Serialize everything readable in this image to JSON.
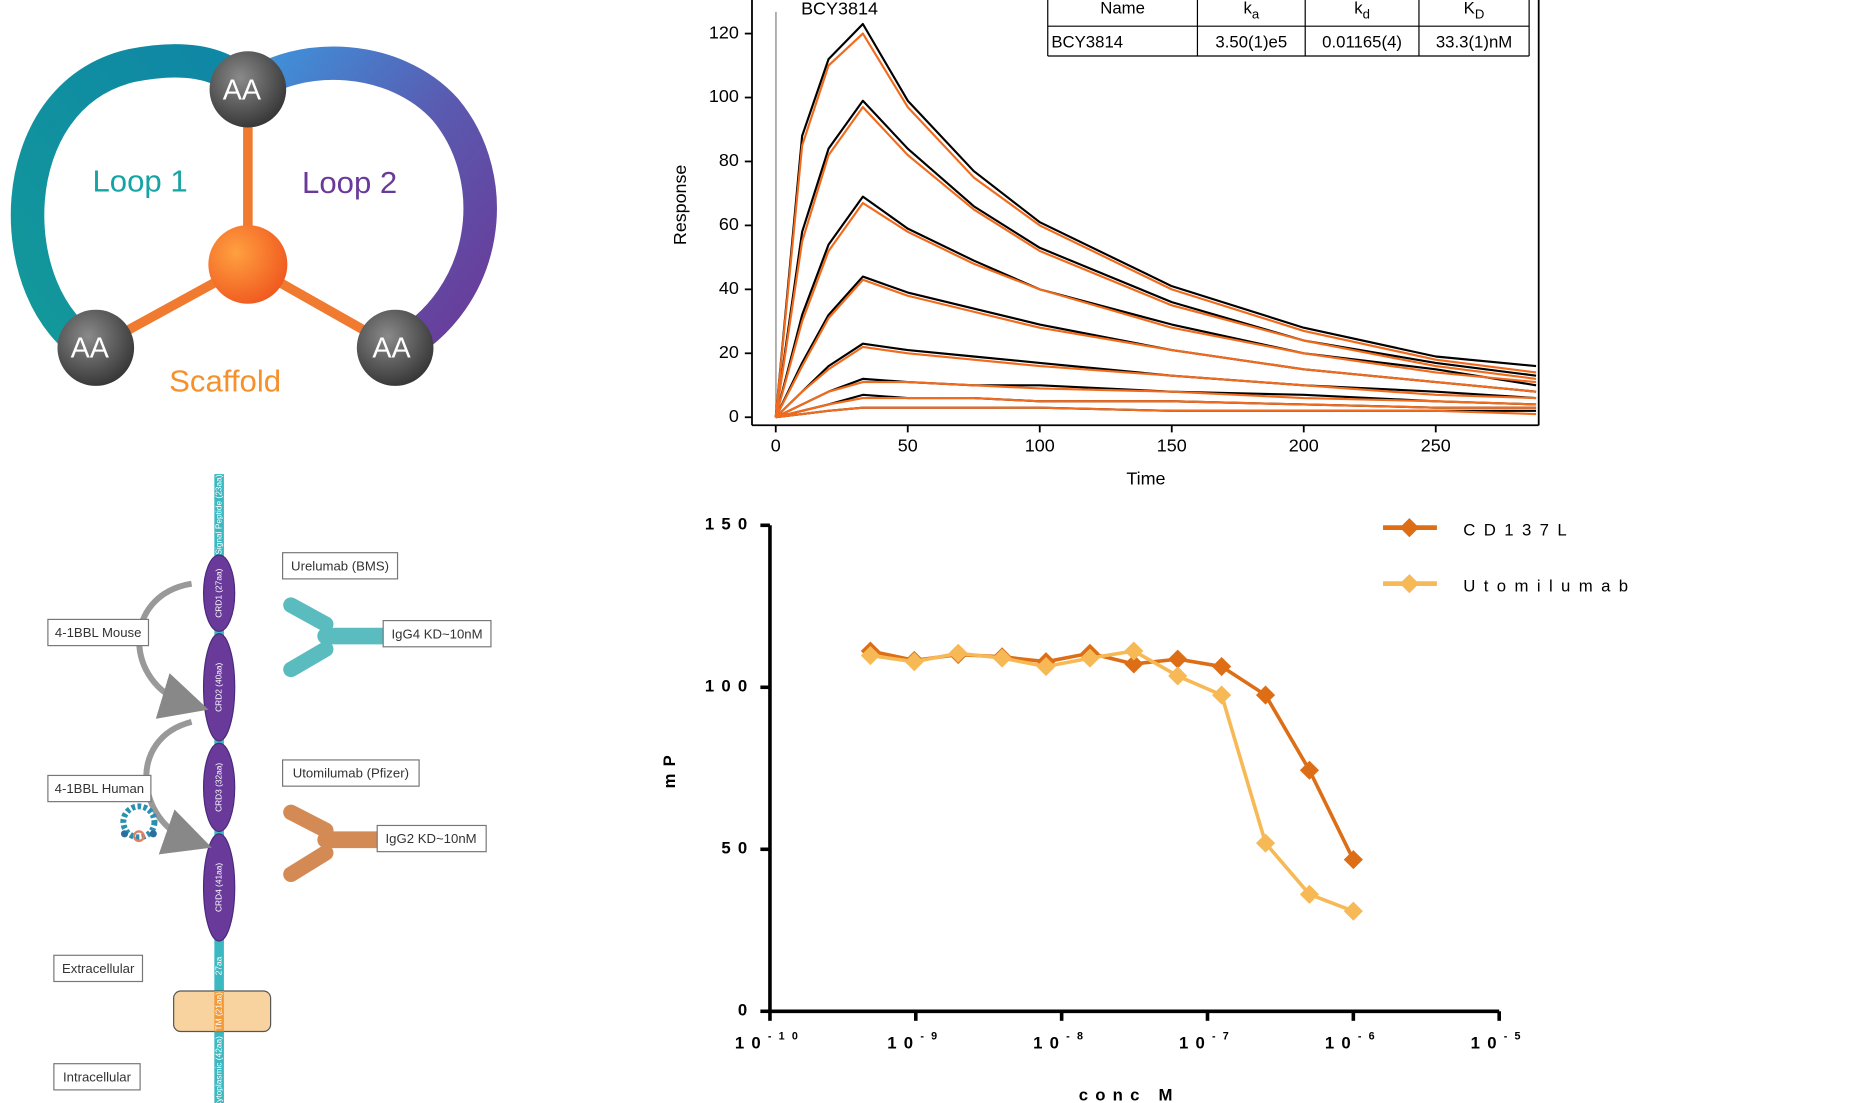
{
  "scaffold_diagram": {
    "nodes": [
      "AA",
      "AA",
      "AA"
    ],
    "loop1": "Loop 1",
    "loop2": "Loop 2",
    "scaffold": "Scaffold"
  },
  "receptor_diagram": {
    "stem": [
      "Signal Peptide (23aa)",
      "27aa",
      "TM (21aa)",
      "Cytoplasmic (42aa)"
    ],
    "domains": [
      "CRD1 (27aa)",
      "CRD2 (40aa)",
      "CRD3 (32aa)",
      "CRD4 (41aa)"
    ],
    "boxes": [
      "4-1BBL Mouse",
      "4-1BBL Human",
      "Urelumab (BMS)",
      "IgG4 KD~10nM",
      "Utomilumab (Pfizer)",
      "IgG2 KD~10nM",
      "Extracellular",
      "Intracellular"
    ]
  },
  "chart_data": [
    {
      "type": "line",
      "annotation": "BCY3814",
      "xlabel": "Time",
      "ylabel": "Response",
      "x": [
        0,
        10,
        20,
        33,
        50,
        75,
        100,
        150,
        200,
        250,
        288
      ],
      "xlim": [
        -9,
        289
      ],
      "ylim": [
        -2.5,
        130.5
      ],
      "xticks": [
        0,
        50,
        100,
        150,
        200,
        250
      ],
      "yticks": [
        0,
        20,
        40,
        60,
        80,
        100,
        120
      ],
      "series": [
        {
          "color": "#000000",
          "values": [
            0,
            88,
            112,
            123,
            99,
            77,
            61,
            41,
            28,
            19,
            16
          ]
        },
        {
          "color": "#000000",
          "values": [
            0,
            58,
            84,
            99,
            84,
            66,
            53,
            36,
            24,
            17,
            13
          ]
        },
        {
          "color": "#000000",
          "values": [
            0,
            32,
            54,
            69,
            59,
            49,
            40,
            29,
            20,
            15,
            10
          ]
        },
        {
          "color": "#000000",
          "values": [
            0,
            17,
            32,
            44,
            39,
            34,
            29,
            21,
            15,
            11,
            8
          ]
        },
        {
          "color": "#000000",
          "values": [
            0,
            8,
            16,
            23,
            21,
            19,
            17,
            13,
            10,
            8,
            6
          ]
        },
        {
          "color": "#000000",
          "values": [
            0,
            4,
            8,
            12,
            11,
            10,
            10,
            8,
            7,
            5,
            4
          ]
        },
        {
          "color": "#000000",
          "values": [
            0,
            2,
            4,
            7,
            6,
            6,
            5,
            5,
            4,
            3,
            3
          ]
        },
        {
          "color": "#000000",
          "values": [
            0,
            1,
            2,
            3,
            3,
            3,
            3,
            2,
            2,
            2,
            2
          ]
        },
        {
          "color": "#f26b1d",
          "values": [
            0,
            85,
            110,
            120,
            97,
            75,
            60,
            40,
            27,
            18,
            14
          ]
        },
        {
          "color": "#f26b1d",
          "values": [
            0,
            55,
            82,
            97,
            82,
            65,
            52,
            35,
            24,
            16,
            12
          ]
        },
        {
          "color": "#f26b1d",
          "values": [
            0,
            30,
            52,
            67,
            58,
            48,
            40,
            28,
            20,
            14,
            11
          ]
        },
        {
          "color": "#f26b1d",
          "values": [
            0,
            16,
            31,
            43,
            38,
            33,
            28,
            21,
            15,
            11,
            8
          ]
        },
        {
          "color": "#f26b1d",
          "values": [
            0,
            8,
            15,
            22,
            20,
            18,
            16,
            13,
            10,
            7,
            6
          ]
        },
        {
          "color": "#f26b1d",
          "values": [
            0,
            4,
            8,
            11,
            11,
            10,
            9,
            8,
            6,
            5,
            4
          ]
        },
        {
          "color": "#f26b1d",
          "values": [
            0,
            2,
            4,
            6,
            6,
            6,
            5,
            5,
            4,
            3,
            3
          ]
        },
        {
          "color": "#f26b1d",
          "values": [
            0,
            1,
            2,
            3,
            3,
            3,
            3,
            2,
            2,
            2,
            1
          ]
        }
      ],
      "table": {
        "header": [
          {
            "text": "Name"
          },
          {
            "text": "k",
            "subscript": "a"
          },
          {
            "text": "k",
            "subscript": "d"
          },
          {
            "text": "K",
            "subscript": "D"
          }
        ],
        "rows": [
          [
            "BCY3814",
            "3.50(1)e5",
            "0.01165(4)",
            "33.3(1)nM"
          ]
        ]
      }
    },
    {
      "type": "line",
      "xlabel": "conc M",
      "ylabel": "mP",
      "log_x": true,
      "marker": "diamond",
      "legend": "top-right",
      "x": [
        4.8828e-10,
        9.7656e-10,
        1.9531e-09,
        3.9063e-09,
        7.8125e-09,
        1.5625e-08,
        3.125e-08,
        6.25e-08,
        1.25e-07,
        2.5e-07,
        5e-07,
        1e-06
      ],
      "xlim": [
        1e-10,
        1e-05
      ],
      "xticks": [
        {
          "value": 1e-10,
          "label": "10",
          "exponent": "-10"
        },
        {
          "value": 1e-09,
          "label": "10",
          "exponent": "-9"
        },
        {
          "value": 1e-08,
          "label": "10",
          "exponent": "-8"
        },
        {
          "value": 1e-07,
          "label": "10",
          "exponent": "-7"
        },
        {
          "value": 1e-06,
          "label": "10",
          "exponent": "-6"
        },
        {
          "value": 1e-05,
          "label": "10",
          "exponent": "-5"
        }
      ],
      "ylim": [
        0,
        150
      ],
      "yticks": [
        0,
        50,
        100,
        150
      ],
      "series": [
        {
          "name": "CD137L",
          "color": "#dd6e16",
          "values": [
            111.2,
            108.3,
            110.1,
            109.4,
            107.9,
            110.5,
            107.2,
            108.7,
            106.4,
            97.6,
            74.4,
            46.8
          ]
        },
        {
          "name": "Utomilumab",
          "color": "#f7b955",
          "values": [
            109.8,
            107.9,
            110.5,
            109.0,
            106.4,
            109.0,
            111.2,
            103.5,
            97.6,
            51.9,
            36.1,
            30.9
          ]
        }
      ]
    }
  ]
}
